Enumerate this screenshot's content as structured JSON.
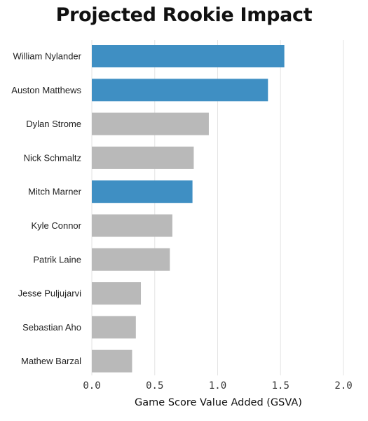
{
  "chart_data": {
    "type": "bar",
    "orientation": "horizontal",
    "title": "Projected Rookie Impact",
    "xlabel": "Game Score Value Added (GSVA)",
    "ylabel": "",
    "xlim": [
      0,
      2.0
    ],
    "xticks": [
      0.0,
      0.5,
      1.0,
      1.5,
      2.0
    ],
    "xtick_labels": [
      "0.0",
      "0.5",
      "1.0",
      "1.5",
      "2.0"
    ],
    "grid": true,
    "categories": [
      "William Nylander",
      "Auston Matthews",
      "Dylan Strome",
      "Nick Schmaltz",
      "Mitch Marner",
      "Kyle Connor",
      "Patrik Laine",
      "Jesse Puljujarvi",
      "Sebastian Aho",
      "Mathew Barzal"
    ],
    "values": [
      1.53,
      1.4,
      0.93,
      0.81,
      0.8,
      0.64,
      0.62,
      0.39,
      0.35,
      0.32
    ],
    "highlight": [
      true,
      true,
      false,
      false,
      true,
      false,
      false,
      false,
      false,
      false
    ],
    "colors": {
      "highlight": "#3f8fc3",
      "default": "#b9b9b9"
    }
  }
}
